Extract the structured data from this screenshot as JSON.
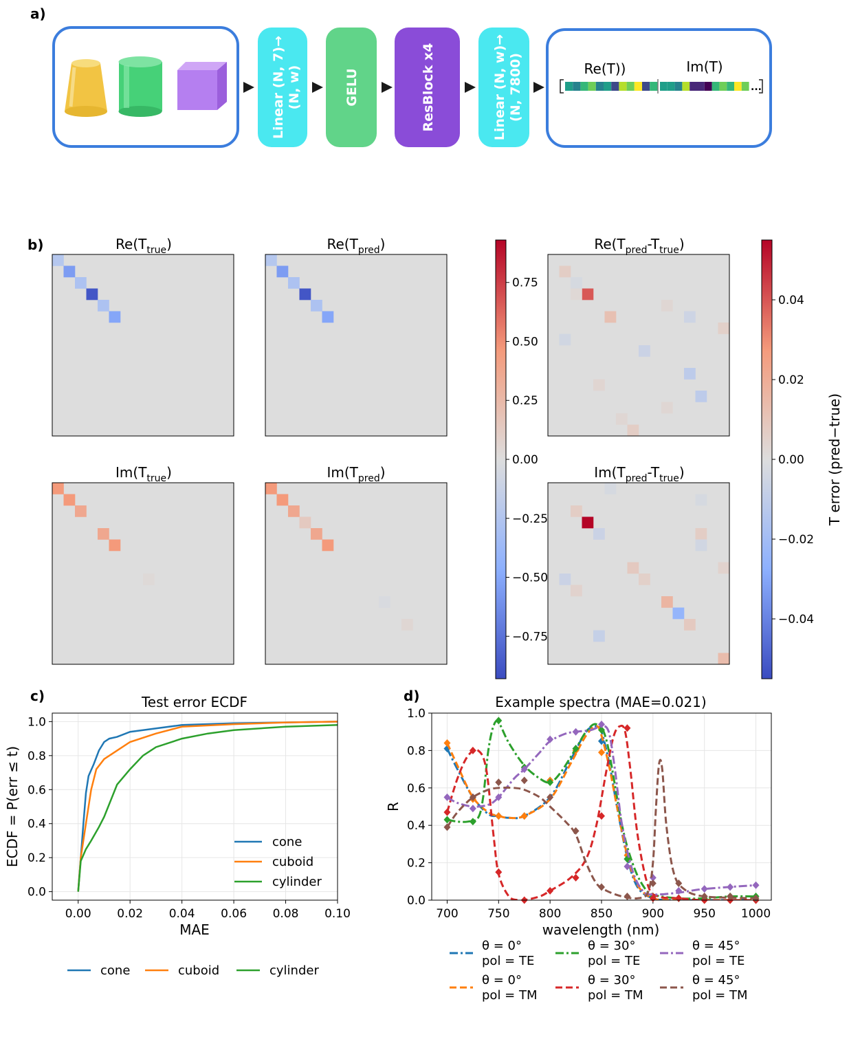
{
  "panel_labels": [
    "a)",
    "b)",
    "c)",
    "d)"
  ],
  "panel_a": {
    "blocks": [
      {
        "label": "Linear (N, 7)→\n(N, w)",
        "color": "#4ae8f0"
      },
      {
        "label": "GELU",
        "color": "#61d489"
      },
      {
        "label": "ResBlock x4",
        "color": "#8a4cd8"
      },
      {
        "label": "Linear (N, w)→\n(N, 7800)",
        "color": "#4ae8f0"
      }
    ],
    "output_labels": {
      "re": "Re(T))",
      "im": "Im(T)",
      "ellipsis": "..."
    },
    "colors": {
      "box_border": "#3b7ddd",
      "cone": "#f2c443",
      "cylinder": "#46d178",
      "cube": "#b57ff0"
    }
  },
  "panel_b": {
    "titles": {
      "re_true": "Re(T_true)",
      "re_pred": "Re(T_pred)",
      "re_diff": "Re(T_pred-T_true)",
      "im_true": "Im(T_true)",
      "im_pred": "Im(T_pred)",
      "im_diff": "Im(T_pred-T_true)"
    },
    "colorbar1": {
      "ticks": [
        "0.75",
        "0.50",
        "0.25",
        "0.00",
        "−0.25",
        "−0.50",
        "−0.75"
      ],
      "range": [
        -0.93,
        0.93
      ]
    },
    "colorbar2": {
      "ticks": [
        "0.04",
        "0.02",
        "0.00",
        "−0.02",
        "−0.04"
      ],
      "range": [
        -0.055,
        0.055
      ],
      "label": "T error (pred−true)"
    }
  },
  "chart_data": [
    {
      "type": "line",
      "title": "Test error ECDF",
      "xlabel": "MAE",
      "ylabel": "ECDF = P(err ≤ t)",
      "xlim": [
        -0.01,
        0.1
      ],
      "ylim": [
        -0.05,
        1.05
      ],
      "x_ticks": [
        "0.00",
        "0.02",
        "0.04",
        "0.06",
        "0.08",
        "0.10"
      ],
      "y_ticks": [
        "0.0",
        "0.2",
        "0.4",
        "0.6",
        "0.8",
        "1.0"
      ],
      "series": [
        {
          "name": "cone",
          "color": "#1f77b4",
          "points": [
            [
              0,
              0
            ],
            [
              0.001,
              0.2
            ],
            [
              0.002,
              0.4
            ],
            [
              0.003,
              0.58
            ],
            [
              0.004,
              0.68
            ],
            [
              0.006,
              0.75
            ],
            [
              0.008,
              0.83
            ],
            [
              0.01,
              0.88
            ],
            [
              0.012,
              0.9
            ],
            [
              0.015,
              0.91
            ],
            [
              0.02,
              0.94
            ],
            [
              0.03,
              0.96
            ],
            [
              0.04,
              0.98
            ],
            [
              0.06,
              0.99
            ],
            [
              0.1,
              1.0
            ]
          ]
        },
        {
          "name": "cuboid",
          "color": "#ff7f0e",
          "points": [
            [
              0,
              0
            ],
            [
              0.001,
              0.2
            ],
            [
              0.003,
              0.4
            ],
            [
              0.005,
              0.6
            ],
            [
              0.007,
              0.72
            ],
            [
              0.01,
              0.78
            ],
            [
              0.015,
              0.83
            ],
            [
              0.02,
              0.88
            ],
            [
              0.03,
              0.93
            ],
            [
              0.04,
              0.97
            ],
            [
              0.06,
              0.985
            ],
            [
              0.08,
              0.995
            ],
            [
              0.1,
              1.0
            ]
          ]
        },
        {
          "name": "cylinder",
          "color": "#2ca02c",
          "points": [
            [
              0,
              0
            ],
            [
              0.001,
              0.18
            ],
            [
              0.003,
              0.25
            ],
            [
              0.005,
              0.3
            ],
            [
              0.008,
              0.38
            ],
            [
              0.01,
              0.44
            ],
            [
              0.015,
              0.63
            ],
            [
              0.02,
              0.72
            ],
            [
              0.025,
              0.8
            ],
            [
              0.03,
              0.85
            ],
            [
              0.04,
              0.9
            ],
            [
              0.05,
              0.93
            ],
            [
              0.06,
              0.95
            ],
            [
              0.08,
              0.97
            ],
            [
              0.1,
              0.98
            ]
          ]
        }
      ],
      "legend": [
        "cone",
        "cuboid",
        "cylinder"
      ]
    },
    {
      "type": "line",
      "title": "Example spectra (MAE=0.021)",
      "xlabel": "wavelength (nm)",
      "ylabel": "R",
      "xlim": [
        685,
        1015
      ],
      "ylim": [
        0,
        1
      ],
      "x_ticks": [
        "700",
        "750",
        "800",
        "850",
        "900",
        "950",
        "1000"
      ],
      "y_ticks": [
        "0.0",
        "0.2",
        "0.4",
        "0.6",
        "0.8",
        "1.0"
      ],
      "series": [
        {
          "name": "θ = 0°, pol = TE",
          "label1": "θ = 0°",
          "label2": "pol = TE",
          "color": "#1f77b4",
          "dash": "dashdot",
          "x": [
            700,
            710,
            725,
            740,
            750,
            760,
            775,
            800,
            820,
            835,
            845,
            850,
            858,
            865,
            875,
            885,
            900,
            920,
            950,
            1000
          ],
          "y": [
            0.81,
            0.7,
            0.55,
            0.46,
            0.45,
            0.44,
            0.45,
            0.55,
            0.75,
            0.9,
            0.93,
            0.9,
            0.72,
            0.5,
            0.23,
            0.07,
            0.01,
            0.0,
            0.0,
            0.0
          ],
          "markers_x": [
            700,
            725,
            750,
            775,
            800,
            825,
            850,
            875,
            900,
            925,
            950,
            975,
            1000
          ],
          "markers_y": [
            0.81,
            0.55,
            0.45,
            0.45,
            0.64,
            0.81,
            0.85,
            0.22,
            0.01,
            0.01,
            0.0,
            0.0,
            0.0
          ]
        },
        {
          "name": "θ = 0°, pol = TM",
          "label1": "θ = 0°",
          "label2": "pol = TM",
          "color": "#ff7f0e",
          "dash": "dashed",
          "x": [
            700,
            710,
            725,
            740,
            750,
            760,
            775,
            800,
            820,
            835,
            845,
            850,
            858,
            865,
            875,
            885,
            900,
            920,
            950,
            1000
          ],
          "y": [
            0.84,
            0.72,
            0.55,
            0.47,
            0.45,
            0.44,
            0.45,
            0.54,
            0.73,
            0.88,
            0.93,
            0.88,
            0.7,
            0.5,
            0.24,
            0.08,
            0.01,
            0.0,
            0.0,
            0.0
          ],
          "markers_x": [
            700,
            725,
            750,
            775,
            800,
            825,
            850,
            875,
            900,
            925,
            950,
            975,
            1000
          ],
          "markers_y": [
            0.84,
            0.54,
            0.45,
            0.45,
            0.64,
            0.8,
            0.79,
            0.24,
            0.01,
            0.01,
            0.0,
            0.0,
            0.0
          ]
        },
        {
          "name": "θ = 30°, pol = TE",
          "label1": "θ = 30°",
          "label2": "pol = TE",
          "color": "#2ca02c",
          "dash": "dashdot",
          "x": [
            700,
            710,
            720,
            730,
            735,
            740,
            745,
            750,
            760,
            775,
            790,
            800,
            810,
            825,
            835,
            845,
            855,
            870,
            880,
            890,
            900,
            925,
            950,
            975,
            1000
          ],
          "y": [
            0.43,
            0.42,
            0.42,
            0.44,
            0.55,
            0.8,
            0.93,
            0.95,
            0.84,
            0.72,
            0.65,
            0.63,
            0.68,
            0.81,
            0.9,
            0.94,
            0.85,
            0.4,
            0.2,
            0.08,
            0.03,
            0.01,
            0.01,
            0.02,
            0.02
          ],
          "markers_x": [
            700,
            725,
            750,
            775,
            800,
            825,
            850,
            875,
            900,
            925,
            950,
            975,
            1000
          ],
          "markers_y": [
            0.43,
            0.42,
            0.96,
            0.71,
            0.63,
            0.81,
            0.91,
            0.22,
            0.02,
            0.01,
            0.01,
            0.02,
            0.02
          ]
        },
        {
          "name": "θ = 30°, pol = TM",
          "label1": "θ = 30°",
          "label2": "pol = TM",
          "color": "#d62728",
          "dash": "dashed",
          "x": [
            700,
            710,
            720,
            730,
            738,
            745,
            750,
            760,
            770,
            775,
            790,
            800,
            820,
            835,
            845,
            855,
            862,
            868,
            873,
            878,
            885,
            895,
            905,
            925,
            950,
            1000
          ],
          "y": [
            0.47,
            0.65,
            0.77,
            0.8,
            0.7,
            0.35,
            0.14,
            0.02,
            0.0,
            0.0,
            0.02,
            0.05,
            0.12,
            0.22,
            0.4,
            0.7,
            0.88,
            0.93,
            0.9,
            0.7,
            0.35,
            0.08,
            0.02,
            0.01,
            0.0,
            0.0
          ],
          "markers_x": [
            700,
            725,
            750,
            775,
            800,
            825,
            850,
            875,
            900,
            925,
            950,
            975,
            1000
          ],
          "markers_y": [
            0.47,
            0.8,
            0.15,
            0.0,
            0.05,
            0.12,
            0.45,
            0.92,
            0.01,
            0.01,
            0.0,
            0.0,
            0.0
          ]
        },
        {
          "name": "θ = 45°, pol = TE",
          "label1": "θ = 45°",
          "label2": "pol = TE",
          "color": "#9467bd",
          "dash": "dashdot",
          "x": [
            700,
            710,
            725,
            740,
            750,
            765,
            775,
            790,
            800,
            815,
            825,
            840,
            850,
            857,
            863,
            870,
            880,
            890,
            900,
            925,
            950,
            1000
          ],
          "y": [
            0.55,
            0.52,
            0.5,
            0.51,
            0.55,
            0.65,
            0.7,
            0.79,
            0.85,
            0.89,
            0.9,
            0.91,
            0.93,
            0.9,
            0.7,
            0.4,
            0.16,
            0.05,
            0.03,
            0.04,
            0.06,
            0.08
          ],
          "markers_x": [
            700,
            725,
            750,
            775,
            800,
            825,
            850,
            875,
            900,
            925,
            950,
            975,
            1000
          ],
          "markers_y": [
            0.55,
            0.49,
            0.55,
            0.7,
            0.86,
            0.9,
            0.94,
            0.18,
            0.12,
            0.05,
            0.06,
            0.07,
            0.08
          ]
        },
        {
          "name": "θ = 45°, pol = TM",
          "label1": "θ = 45°",
          "label2": "pol = TM",
          "color": "#8c564b",
          "dash": "dashed",
          "x": [
            700,
            710,
            725,
            740,
            750,
            765,
            775,
            790,
            800,
            815,
            825,
            835,
            845,
            855,
            870,
            885,
            895,
            900,
            903,
            906,
            909,
            913,
            920,
            930,
            950,
            1000
          ],
          "y": [
            0.39,
            0.47,
            0.55,
            0.59,
            0.6,
            0.6,
            0.59,
            0.55,
            0.5,
            0.42,
            0.35,
            0.2,
            0.09,
            0.05,
            0.02,
            0.01,
            0.04,
            0.2,
            0.5,
            0.73,
            0.7,
            0.4,
            0.15,
            0.06,
            0.02,
            0.01
          ],
          "markers_x": [
            700,
            725,
            750,
            775,
            800,
            825,
            850,
            875,
            900,
            925,
            950,
            975,
            1000
          ],
          "markers_y": [
            0.39,
            0.55,
            0.63,
            0.64,
            0.55,
            0.37,
            0.07,
            0.02,
            0.09,
            0.09,
            0.02,
            0.02,
            0.01
          ]
        }
      ]
    }
  ]
}
